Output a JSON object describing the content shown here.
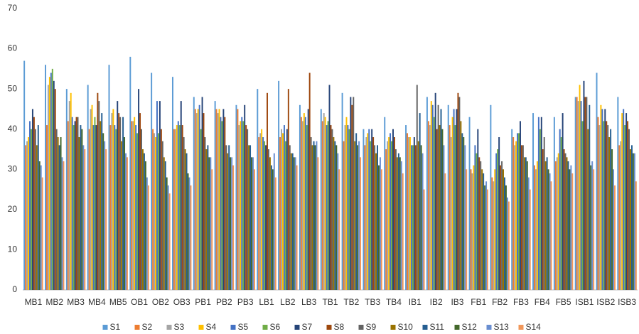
{
  "chart_data": {
    "type": "bar",
    "categories": [
      "MB1",
      "MB2",
      "MB3",
      "MB4",
      "MB5",
      "OB1",
      "OB2",
      "OB3",
      "PB1",
      "PB2",
      "PB3",
      "LB1",
      "LB2",
      "LB3",
      "TB1",
      "TB2",
      "TB3",
      "TB4",
      "IB1",
      "IB2",
      "IB3",
      "FB1",
      "FB2",
      "FB3",
      "FB4",
      "FB5",
      "ISB1",
      "ISB2",
      "ISB3"
    ],
    "series": [
      {
        "name": "S1",
        "color": "#5b9bd5",
        "values": [
          57,
          56,
          50,
          51,
          56,
          58,
          54,
          53,
          48,
          47,
          46,
          50,
          52,
          46,
          45,
          49,
          40,
          43,
          41,
          48,
          46,
          43,
          46,
          40,
          44,
          43,
          48,
          54,
          48
        ]
      },
      {
        "name": "S2",
        "color": "#ed7d31",
        "values": [
          36,
          41,
          42,
          40,
          41,
          42,
          40,
          40,
          45,
          45,
          45,
          38,
          38,
          43,
          42,
          37,
          36,
          35,
          39,
          42,
          41,
          30,
          28,
          38,
          31,
          32,
          48,
          43,
          36
        ]
      },
      {
        "name": "S3",
        "color": "#a5a5a5",
        "values": [
          37,
          51,
          47,
          45,
          44,
          42,
          39,
          40,
          44,
          44,
          41,
          39,
          40,
          42,
          44,
          41,
          38,
          37,
          38,
          41,
          38,
          29,
          27,
          36,
          30,
          33,
          47,
          41,
          37
        ]
      },
      {
        "name": "S4",
        "color": "#ffc000",
        "values": [
          38,
          53,
          49,
          46,
          45,
          43,
          38,
          41,
          45,
          45,
          42,
          40,
          39,
          44,
          43,
          43,
          39,
          38,
          38,
          47,
          43,
          31,
          30,
          37,
          32,
          34,
          51,
          46,
          44
        ]
      },
      {
        "name": "S5",
        "color": "#4472c4",
        "values": [
          42,
          54,
          43,
          41,
          41,
          41,
          47,
          42,
          46,
          43,
          43,
          38,
          41,
          43,
          41,
          41,
          40,
          39,
          36,
          46,
          45,
          36,
          34,
          39,
          43,
          40,
          47,
          45,
          45
        ]
      },
      {
        "name": "S6",
        "color": "#70ad47",
        "values": [
          40,
          55,
          41,
          43,
          40,
          39,
          39,
          41,
          40,
          42,
          42,
          37,
          37,
          41,
          42,
          40,
          37,
          37,
          36,
          43,
          41,
          34,
          35,
          39,
          40,
          38,
          42,
          42,
          41
        ]
      },
      {
        "name": "S7",
        "color": "#264478",
        "values": [
          45,
          52,
          42,
          41,
          47,
          50,
          47,
          47,
          48,
          45,
          46,
          36,
          40,
          45,
          51,
          48,
          40,
          40,
          38,
          49,
          45,
          40,
          38,
          42,
          43,
          44,
          52,
          45,
          44
        ]
      },
      {
        "name": "S8",
        "color": "#9e480e",
        "values": [
          43,
          50,
          43,
          49,
          44,
          44,
          40,
          41,
          44,
          43,
          41,
          49,
          50,
          54,
          41,
          46,
          38,
          38,
          36,
          40,
          49,
          33,
          31,
          36,
          35,
          35,
          48,
          42,
          42
        ]
      },
      {
        "name": "S9",
        "color": "#636363",
        "values": [
          40,
          40,
          43,
          47,
          43,
          40,
          37,
          38,
          38,
          36,
          40,
          35,
          36,
          38,
          40,
          48,
          36,
          35,
          51,
          46,
          48,
          32,
          32,
          36,
          38,
          34,
          48,
          41,
          40
        ]
      },
      {
        "name": "S10",
        "color": "#997300",
        "values": [
          36,
          38,
          38,
          42,
          37,
          35,
          33,
          35,
          35,
          34,
          36,
          33,
          34,
          36,
          38,
          37,
          34,
          33,
          37,
          41,
          42,
          30,
          30,
          33,
          32,
          33,
          40,
          38,
          35
        ]
      },
      {
        "name": "S11",
        "color": "#255e91",
        "values": [
          41,
          36,
          41,
          44,
          43,
          34,
          32,
          34,
          36,
          36,
          36,
          31,
          34,
          37,
          37,
          39,
          36,
          34,
          44,
          45,
          39,
          29,
          28,
          33,
          33,
          32,
          46,
          40,
          36
        ]
      },
      {
        "name": "S12",
        "color": "#43682b",
        "values": [
          32,
          38,
          40,
          39,
          38,
          32,
          28,
          29,
          33,
          33,
          33,
          30,
          33,
          36,
          36,
          36,
          31,
          33,
          36,
          40,
          38,
          26,
          26,
          32,
          30,
          30,
          31,
          35,
          34
        ]
      },
      {
        "name": "S13",
        "color": "#698ed0",
        "values": [
          31,
          33,
          36,
          37,
          34,
          28,
          26,
          28,
          33,
          33,
          33,
          34,
          33,
          37,
          34,
          37,
          33,
          32,
          34,
          36,
          36,
          27,
          23,
          28,
          29,
          31,
          32,
          30,
          34
        ]
      },
      {
        "name": "S14",
        "color": "#f1975a",
        "values": [
          28,
          32,
          35,
          35,
          33,
          26,
          24,
          26,
          30,
          31,
          30,
          28,
          31,
          33,
          30,
          33,
          30,
          29,
          25,
          29,
          30,
          25,
          22,
          25,
          27,
          29,
          30,
          26,
          27
        ]
      }
    ],
    "ylim": [
      0,
      70
    ],
    "yticks": [
      0,
      10,
      20,
      30,
      40,
      50,
      60,
      70
    ],
    "grid": false,
    "legend": "bottom"
  }
}
